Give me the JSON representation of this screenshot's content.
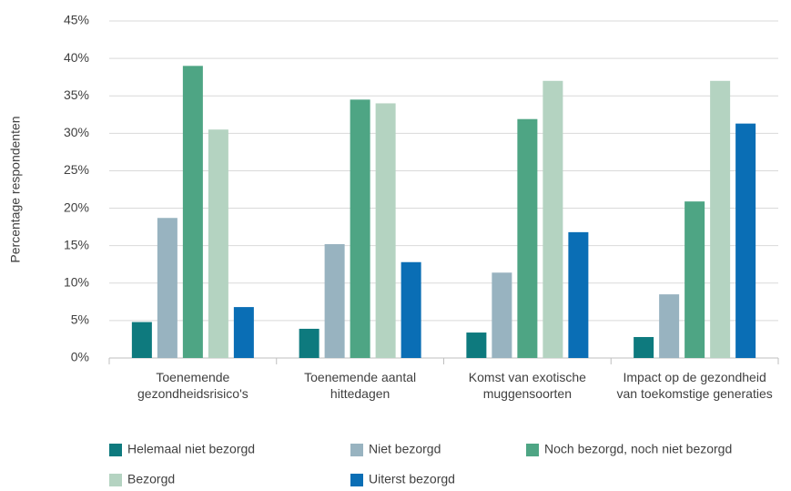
{
  "chart_data": {
    "type": "bar",
    "ylabel": "Percentage respondenten",
    "categories": [
      "Toenemende gezondheidsrisico's",
      "Toenemende aantal hittedagen",
      "Komst van exotische muggensoorten",
      "Impact op de gezondheid van toekomstige generaties"
    ],
    "series": [
      {
        "name": "Helemaal niet bezorgd",
        "color": "#0e7a7e",
        "values": [
          4.8,
          3.9,
          3.4,
          2.8
        ]
      },
      {
        "name": "Niet bezorgd",
        "color": "#98b3c0",
        "values": [
          18.7,
          15.2,
          11.4,
          8.5
        ]
      },
      {
        "name": "Noch bezorgd, noch niet bezorgd",
        "color": "#4ea584",
        "values": [
          39.0,
          34.5,
          31.9,
          20.9
        ]
      },
      {
        "name": "Bezorgd",
        "color": "#b4d3c1",
        "values": [
          30.5,
          34.0,
          37.0,
          37.0
        ]
      },
      {
        "name": "Uiterst bezorgd",
        "color": "#0a6eb5",
        "values": [
          6.8,
          12.8,
          16.8,
          31.3
        ]
      }
    ],
    "ylim": [
      0,
      45
    ],
    "yticks": [
      {
        "value": 0,
        "label": "0%"
      },
      {
        "value": 5,
        "label": "5%"
      },
      {
        "value": 10,
        "label": "10%"
      },
      {
        "value": 15,
        "label": "15%"
      },
      {
        "value": 20,
        "label": "20%"
      },
      {
        "value": 25,
        "label": "25%"
      },
      {
        "value": 30,
        "label": "30%"
      },
      {
        "value": 35,
        "label": "35%"
      },
      {
        "value": 40,
        "label": "40%"
      },
      {
        "value": 45,
        "label": "45%"
      }
    ],
    "grid": true
  }
}
